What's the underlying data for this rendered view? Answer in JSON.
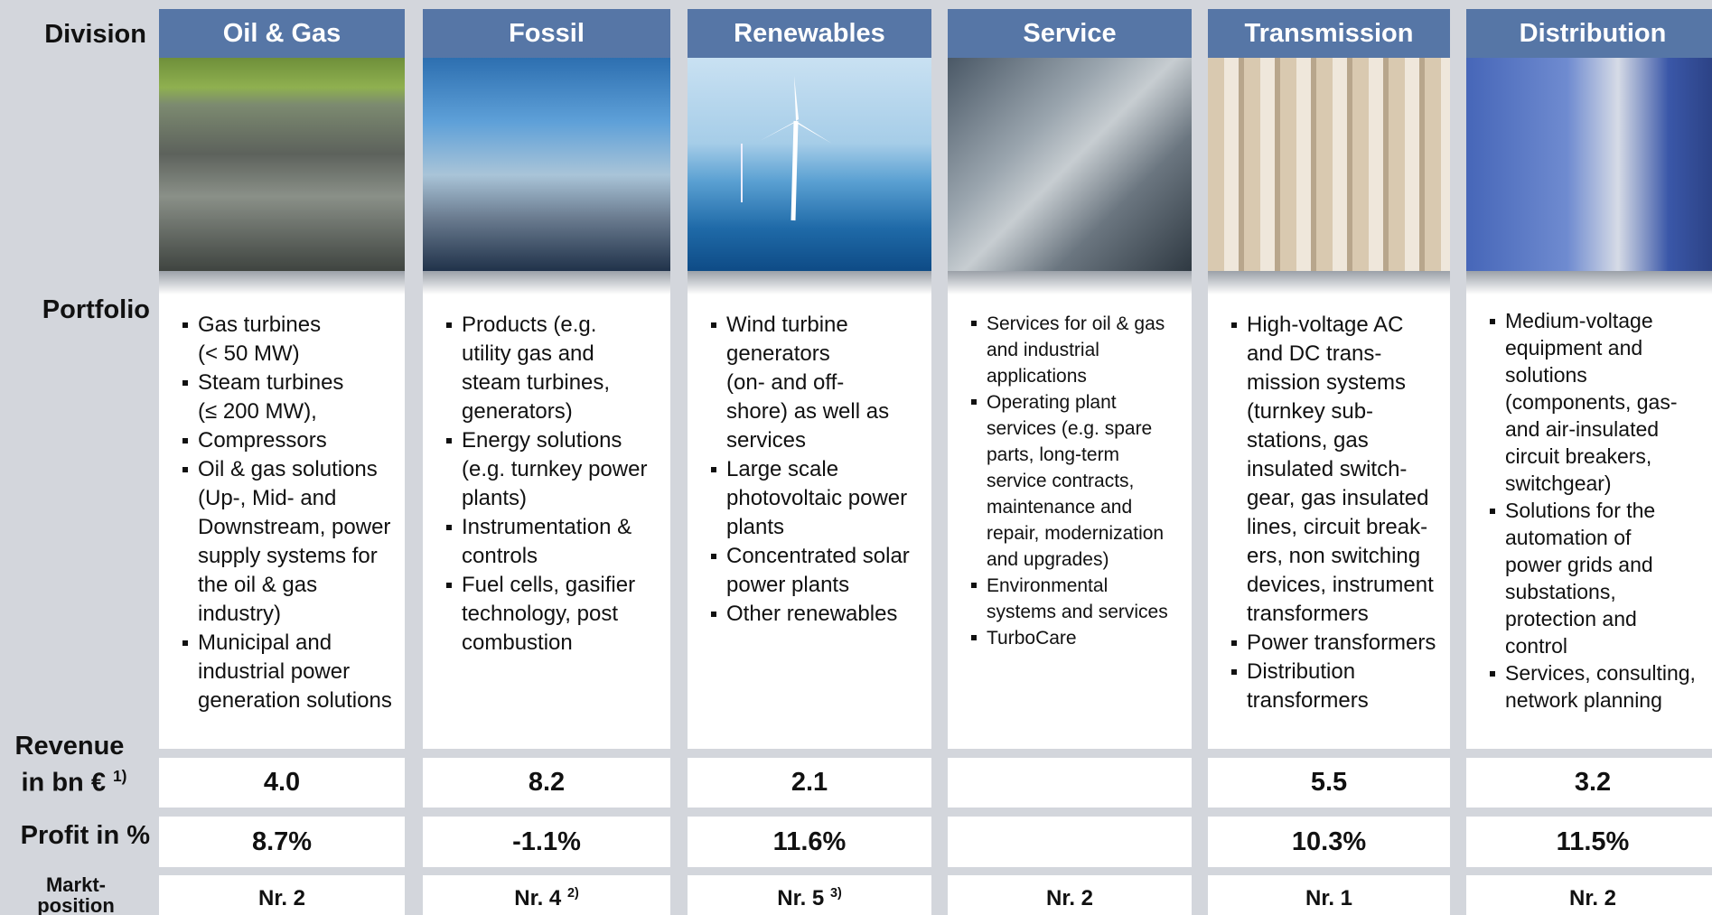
{
  "row_labels": {
    "division": "Division",
    "portfolio": "Portfolio",
    "revenue": "Revenue",
    "revenue_unit": "in bn €",
    "revenue_note": "1)",
    "profit": "Profit in %",
    "market": [
      "Markt-",
      "position"
    ]
  },
  "columns": [
    {
      "name": "Oil & Gas",
      "portfolio": [
        [
          "Gas turbines",
          "(< 50 MW)"
        ],
        [
          "Steam turbines",
          "(≤ 200 MW),"
        ],
        [
          "Compressors"
        ],
        [
          "Oil & gas solutions",
          "(Up-, Mid- and",
          "Downstream, power",
          "supply systems for",
          "the oil & gas",
          "industry)"
        ],
        [
          "Municipal and",
          "industrial power",
          "generation solutions"
        ]
      ],
      "revenue": "4.0",
      "profit": "8.7%",
      "market": {
        "text": "Nr. 2"
      }
    },
    {
      "name": "Fossil",
      "portfolio": [
        [
          "Products (e.g.",
          "utility gas and",
          "steam turbines,",
          "generators)"
        ],
        [
          "Energy solutions",
          "(e.g. turnkey power",
          "plants)"
        ],
        [
          "Instrumentation &",
          "controls"
        ],
        [
          "Fuel cells, gasifier",
          "technology, post",
          "combustion"
        ]
      ],
      "revenue": "8.2",
      "profit": "-1.1%",
      "market": {
        "text": "Nr. 4",
        "note": "2)"
      }
    },
    {
      "name": "Renewables",
      "portfolio": [
        [
          "Wind turbine",
          "generators",
          "(on- and off-",
          "shore) as well as",
          "services"
        ],
        [
          "Large scale",
          "photovoltaic power",
          "plants"
        ],
        [
          "Concentrated solar",
          "power plants"
        ],
        [
          "Other renewables"
        ]
      ],
      "revenue": "2.1",
      "profit": "11.6%",
      "market": {
        "text": "Nr. 5",
        "note": "3)"
      }
    },
    {
      "name": "Service",
      "portfolio": [
        [
          "Services for oil & gas",
          "and industrial",
          "applications"
        ],
        [
          "Operating plant",
          "services (e.g. spare",
          "parts, long-term",
          "service contracts,",
          "maintenance and",
          "repair, modernization",
          "and upgrades)"
        ],
        [
          "Environmental",
          "systems and services"
        ],
        [
          "TurboCare"
        ]
      ],
      "market": {
        "text": "Nr. 2"
      }
    },
    {
      "name": "Transmission",
      "portfolio": [
        [
          "High-voltage AC",
          "and DC trans-",
          "mission systems",
          "(turnkey sub-",
          "stations, gas",
          "insulated switch-",
          "gear, gas insulated",
          "lines, circuit break-",
          "ers, non switching",
          "devices, instrument",
          "transformers"
        ],
        [
          "Power transformers"
        ],
        [
          "Distribution",
          "transformers"
        ]
      ],
      "revenue": "5.5",
      "profit": "10.3%",
      "market": {
        "text": "Nr. 1"
      }
    },
    {
      "name": "Distribution",
      "portfolio": [
        [
          "Medium-voltage",
          "equipment and",
          "solutions",
          "(components, gas-",
          "and air-insulated",
          "circuit breakers,",
          "switchgear)"
        ],
        [
          "Solutions for the",
          "automation of",
          "power grids and",
          "substations,",
          "protection and",
          "control"
        ],
        [
          "Services, consulting,",
          "network planning"
        ]
      ],
      "revenue": "3.2",
      "profit": "11.5%",
      "market": {
        "text": "Nr. 2"
      }
    }
  ]
}
